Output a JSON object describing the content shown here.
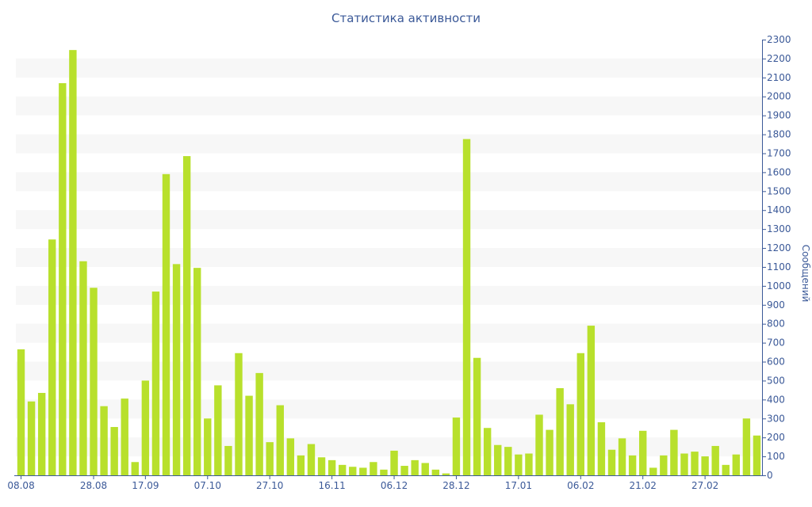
{
  "chart_data": {
    "type": "bar",
    "title": "Статистика активности",
    "xlabel": "",
    "ylabel": "Сообщений",
    "ylim": [
      0,
      2300
    ],
    "y_ticks": [
      0,
      100,
      200,
      300,
      400,
      500,
      600,
      700,
      800,
      900,
      1000,
      1100,
      1200,
      1300,
      1400,
      1500,
      1600,
      1700,
      1800,
      1900,
      2000,
      2100,
      2200,
      2300
    ],
    "y_axis_position": "right",
    "x_tick_labels": [
      {
        "label": "08.08",
        "index": 0
      },
      {
        "label": "28.08",
        "index": 7
      },
      {
        "label": "17.09",
        "index": 12
      },
      {
        "label": "07.10",
        "index": 18
      },
      {
        "label": "27.10",
        "index": 24
      },
      {
        "label": "16.11",
        "index": 30
      },
      {
        "label": "06.12",
        "index": 36
      },
      {
        "label": "28.12",
        "index": 42
      },
      {
        "label": "17.01",
        "index": 48
      },
      {
        "label": "06.02",
        "index": 54
      },
      {
        "label": "21.02",
        "index": 60
      },
      {
        "label": "27.02",
        "index": 66
      }
    ],
    "grid": "alternating horizontal bands",
    "bar_color": "#b8e02c",
    "values": [
      665,
      390,
      435,
      1245,
      2070,
      2245,
      1130,
      990,
      365,
      255,
      405,
      70,
      500,
      970,
      1590,
      1115,
      1685,
      1095,
      300,
      475,
      155,
      645,
      420,
      540,
      175,
      370,
      195,
      105,
      165,
      95,
      80,
      55,
      45,
      40,
      70,
      30,
      130,
      50,
      80,
      65,
      30,
      10,
      305,
      1775,
      620,
      250,
      160,
      150,
      110,
      115,
      320,
      240,
      460,
      375,
      645,
      790,
      280,
      135,
      195,
      105,
      235,
      40,
      105,
      240,
      115,
      125,
      100,
      155,
      55,
      110,
      300,
      210
    ]
  }
}
